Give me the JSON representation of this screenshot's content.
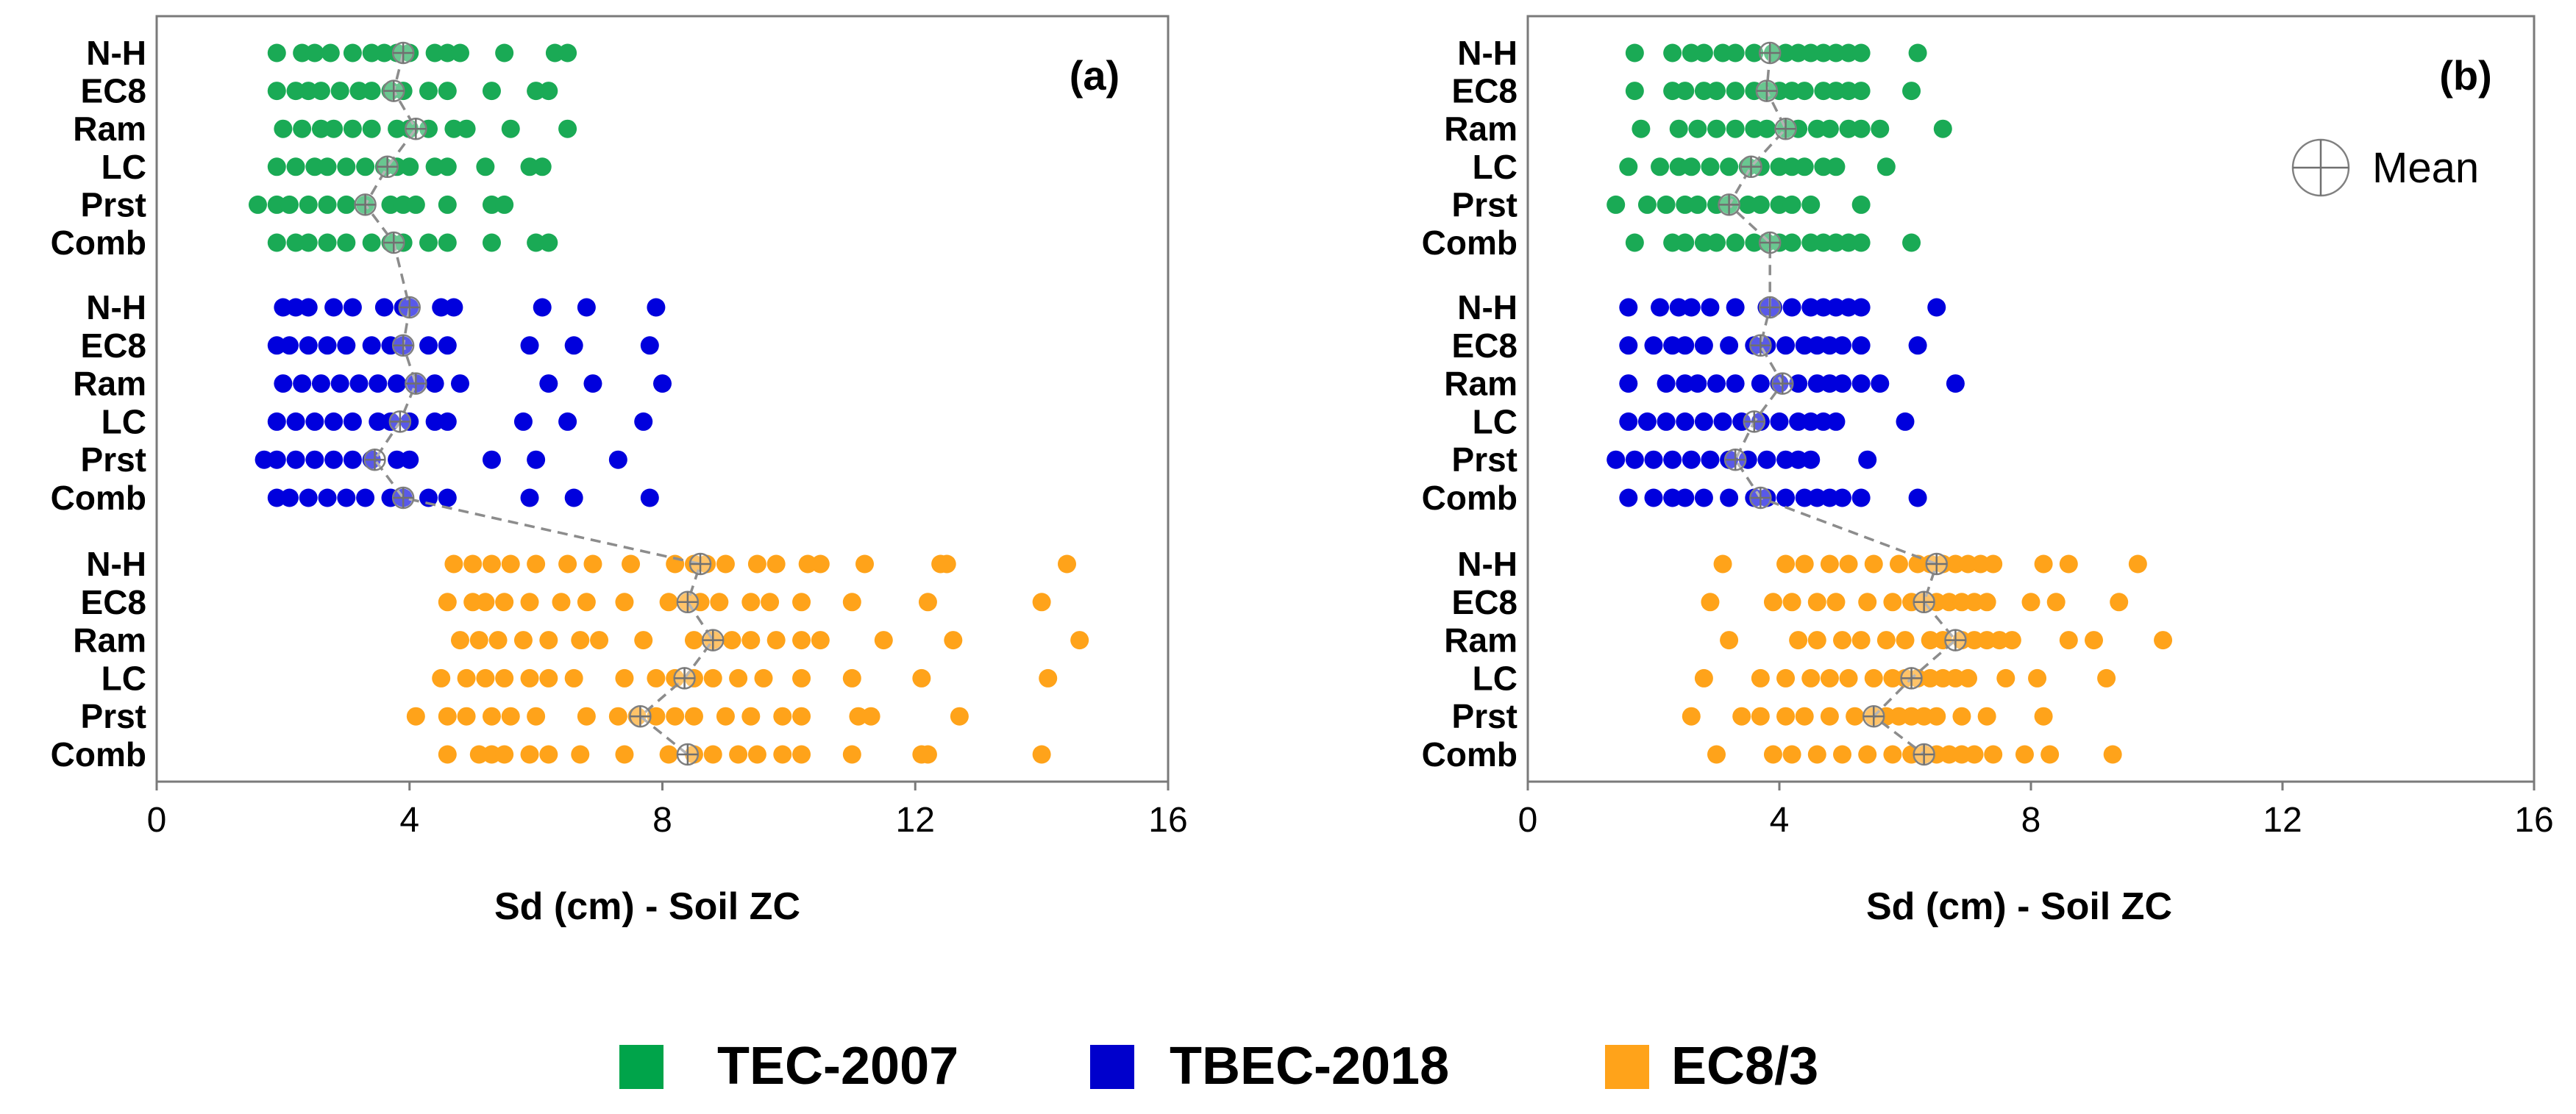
{
  "chart_data": {
    "type": "scatter",
    "categories": [
      "N-H",
      "EC8",
      "Ram",
      "LC",
      "Prst",
      "Comb"
    ],
    "xlabel": "Sd (cm) - Soil ZC",
    "xlim": [
      0,
      16
    ],
    "xticks": [
      0,
      4,
      8,
      12,
      16
    ],
    "mean_label": "Mean",
    "legend": [
      {
        "name": "TEC-2007",
        "color": "#00a44a"
      },
      {
        "name": "TBEC-2018",
        "color": "#0000cc"
      },
      {
        "name": "EC8/3",
        "color": "#ffa31a"
      }
    ],
    "panels": [
      {
        "tag": "(a)",
        "series": [
          {
            "name": "TEC-2007",
            "color": "#1aaa55",
            "rows": {
              "N-H": {
                "values": [
                  1.9,
                  2.3,
                  2.5,
                  2.75,
                  3.1,
                  3.4,
                  3.6,
                  3.8,
                  4.0,
                  4.4,
                  4.6,
                  4.8,
                  5.5,
                  6.3,
                  6.5
                ],
                "mean": 3.9
              },
              "EC8": {
                "values": [
                  1.9,
                  2.2,
                  2.4,
                  2.6,
                  2.9,
                  3.2,
                  3.4,
                  3.7,
                  3.9,
                  4.3,
                  4.6,
                  5.3,
                  6.0,
                  6.2
                ],
                "mean": 3.75
              },
              "Ram": {
                "values": [
                  2.0,
                  2.3,
                  2.6,
                  2.8,
                  3.1,
                  3.4,
                  3.8,
                  4.0,
                  4.3,
                  4.7,
                  4.9,
                  5.6,
                  6.5
                ],
                "mean": 4.1
              },
              "LC": {
                "values": [
                  1.9,
                  2.2,
                  2.5,
                  2.7,
                  3.0,
                  3.3,
                  3.6,
                  3.8,
                  4.0,
                  4.4,
                  4.6,
                  5.2,
                  5.9,
                  6.1
                ],
                "mean": 3.65
              },
              "Prst": {
                "values": [
                  1.6,
                  1.9,
                  2.1,
                  2.4,
                  2.7,
                  3.0,
                  3.3,
                  3.7,
                  3.9,
                  4.1,
                  4.6,
                  5.3,
                  5.5
                ],
                "mean": 3.3
              },
              "Comb": {
                "values": [
                  1.9,
                  2.2,
                  2.4,
                  2.7,
                  3.0,
                  3.4,
                  3.7,
                  3.9,
                  4.3,
                  4.6,
                  5.3,
                  6.0,
                  6.2
                ],
                "mean": 3.75
              }
            }
          },
          {
            "name": "TBEC-2018",
            "color": "#0000dd",
            "rows": {
              "N-H": {
                "values": [
                  2.0,
                  2.2,
                  2.4,
                  2.8,
                  3.1,
                  3.6,
                  3.9,
                  4.0,
                  4.5,
                  4.7,
                  6.1,
                  6.8,
                  7.9
                ],
                "mean": 4.0
              },
              "EC8": {
                "values": [
                  1.9,
                  2.1,
                  2.4,
                  2.7,
                  3.0,
                  3.4,
                  3.7,
                  3.9,
                  4.3,
                  4.6,
                  5.9,
                  6.6,
                  7.8
                ],
                "mean": 3.9
              },
              "Ram": {
                "values": [
                  2.0,
                  2.3,
                  2.6,
                  2.9,
                  3.2,
                  3.5,
                  3.8,
                  4.1,
                  4.4,
                  4.8,
                  6.2,
                  6.9,
                  8.0
                ],
                "mean": 4.1
              },
              "LC": {
                "values": [
                  1.9,
                  2.2,
                  2.5,
                  2.8,
                  3.1,
                  3.5,
                  3.7,
                  4.0,
                  4.4,
                  4.6,
                  5.8,
                  6.5,
                  7.7
                ],
                "mean": 3.85
              },
              "Prst": {
                "values": [
                  1.7,
                  1.9,
                  2.2,
                  2.5,
                  2.8,
                  3.1,
                  3.4,
                  3.8,
                  4.0,
                  5.3,
                  6.0,
                  7.3
                ],
                "mean": 3.45
              },
              "Comb": {
                "values": [
                  1.9,
                  2.1,
                  2.4,
                  2.7,
                  3.0,
                  3.3,
                  3.7,
                  3.9,
                  4.3,
                  4.6,
                  5.9,
                  6.6,
                  7.8
                ],
                "mean": 3.9
              }
            }
          },
          {
            "name": "EC8/3",
            "color": "#ffa31a",
            "rows": {
              "N-H": {
                "values": [
                  4.7,
                  5.0,
                  5.3,
                  5.6,
                  6.0,
                  6.5,
                  6.9,
                  7.5,
                  8.2,
                  8.5,
                  8.7,
                  9.0,
                  9.5,
                  9.8,
                  10.3,
                  10.5,
                  11.2,
                  12.4,
                  12.5,
                  14.4
                ],
                "mean": 8.6
              },
              "EC8": {
                "values": [
                  4.6,
                  5.0,
                  5.2,
                  5.5,
                  5.9,
                  6.4,
                  6.8,
                  7.4,
                  8.1,
                  8.4,
                  8.6,
                  8.9,
                  9.4,
                  9.7,
                  10.2,
                  11.0,
                  12.2,
                  14.0
                ],
                "mean": 8.4
              },
              "Ram": {
                "values": [
                  4.8,
                  5.1,
                  5.4,
                  5.8,
                  6.2,
                  6.7,
                  7.0,
                  7.7,
                  8.5,
                  8.8,
                  9.1,
                  9.4,
                  9.8,
                  10.2,
                  10.5,
                  11.5,
                  12.6,
                  14.6
                ],
                "mean": 8.8
              },
              "LC": {
                "values": [
                  4.5,
                  4.9,
                  5.2,
                  5.5,
                  5.9,
                  6.2,
                  6.6,
                  7.4,
                  7.9,
                  8.2,
                  8.5,
                  8.8,
                  9.2,
                  9.6,
                  10.2,
                  11.0,
                  12.1,
                  14.1
                ],
                "mean": 8.35
              },
              "Prst": {
                "values": [
                  4.1,
                  4.6,
                  4.9,
                  5.3,
                  5.6,
                  6.0,
                  6.8,
                  7.3,
                  7.6,
                  7.9,
                  8.2,
                  8.5,
                  9.0,
                  9.4,
                  9.9,
                  10.2,
                  11.1,
                  11.3,
                  12.7
                ],
                "mean": 7.65
              },
              "Comb": {
                "values": [
                  4.6,
                  5.1,
                  5.3,
                  5.5,
                  5.9,
                  6.2,
                  6.7,
                  7.4,
                  8.1,
                  8.5,
                  8.8,
                  9.2,
                  9.5,
                  9.9,
                  10.2,
                  11.0,
                  12.1,
                  12.2,
                  14.0
                ],
                "mean": 8.4
              }
            }
          }
        ]
      },
      {
        "tag": "(b)",
        "series": [
          {
            "name": "TEC-2007",
            "color": "#1aaa55",
            "rows": {
              "N-H": {
                "values": [
                  1.7,
                  2.3,
                  2.6,
                  2.8,
                  3.1,
                  3.3,
                  3.6,
                  3.9,
                  4.1,
                  4.3,
                  4.5,
                  4.7,
                  4.9,
                  5.1,
                  5.3,
                  6.2
                ],
                "mean": 3.85
              },
              "EC8": {
                "values": [
                  1.7,
                  2.3,
                  2.5,
                  2.8,
                  3.0,
                  3.3,
                  3.6,
                  3.8,
                  4.0,
                  4.2,
                  4.4,
                  4.7,
                  4.9,
                  5.1,
                  5.3,
                  6.1
                ],
                "mean": 3.8
              },
              "Ram": {
                "values": [
                  1.8,
                  2.4,
                  2.7,
                  3.0,
                  3.3,
                  3.6,
                  3.8,
                  4.1,
                  4.3,
                  4.6,
                  4.8,
                  5.1,
                  5.3,
                  5.6,
                  6.6
                ],
                "mean": 4.1
              },
              "LC": {
                "values": [
                  1.6,
                  2.1,
                  2.4,
                  2.6,
                  2.9,
                  3.2,
                  3.5,
                  3.7,
                  4.0,
                  4.2,
                  4.4,
                  4.7,
                  4.9,
                  5.7
                ],
                "mean": 3.55
              },
              "Prst": {
                "values": [
                  1.4,
                  1.9,
                  2.2,
                  2.5,
                  2.7,
                  3.0,
                  3.2,
                  3.5,
                  3.7,
                  4.0,
                  4.2,
                  4.5,
                  5.3
                ],
                "mean": 3.2
              },
              "Comb": {
                "values": [
                  1.7,
                  2.3,
                  2.5,
                  2.8,
                  3.0,
                  3.3,
                  3.6,
                  3.8,
                  4.0,
                  4.2,
                  4.5,
                  4.7,
                  4.9,
                  5.1,
                  5.3,
                  6.1
                ],
                "mean": 3.85
              }
            }
          },
          {
            "name": "TBEC-2018",
            "color": "#0000dd",
            "rows": {
              "N-H": {
                "values": [
                  1.6,
                  2.1,
                  2.4,
                  2.6,
                  2.9,
                  3.3,
                  3.8,
                  3.9,
                  4.2,
                  4.5,
                  4.7,
                  4.9,
                  5.1,
                  5.3,
                  6.5
                ],
                "mean": 3.85
              },
              "EC8": {
                "values": [
                  1.6,
                  2.0,
                  2.3,
                  2.5,
                  2.8,
                  3.2,
                  3.6,
                  3.8,
                  4.1,
                  4.4,
                  4.6,
                  4.8,
                  5.0,
                  5.3,
                  6.2
                ],
                "mean": 3.7
              },
              "Ram": {
                "values": [
                  1.6,
                  2.2,
                  2.5,
                  2.7,
                  3.0,
                  3.3,
                  3.7,
                  4.0,
                  4.3,
                  4.6,
                  4.8,
                  5.0,
                  5.3,
                  5.6,
                  6.8
                ],
                "mean": 4.05
              },
              "LC": {
                "values": [
                  1.6,
                  1.9,
                  2.2,
                  2.5,
                  2.8,
                  3.1,
                  3.4,
                  3.7,
                  4.0,
                  4.3,
                  4.5,
                  4.7,
                  4.9,
                  6.0
                ],
                "mean": 3.6
              },
              "Prst": {
                "values": [
                  1.4,
                  1.7,
                  2.0,
                  2.3,
                  2.6,
                  2.9,
                  3.2,
                  3.5,
                  3.8,
                  4.1,
                  4.3,
                  4.5,
                  5.4
                ],
                "mean": 3.3
              },
              "Comb": {
                "values": [
                  1.6,
                  2.0,
                  2.3,
                  2.5,
                  2.8,
                  3.2,
                  3.6,
                  3.8,
                  4.1,
                  4.4,
                  4.6,
                  4.8,
                  5.0,
                  5.3,
                  6.2
                ],
                "mean": 3.7
              }
            }
          },
          {
            "name": "EC8/3",
            "color": "#ffa31a",
            "rows": {
              "N-H": {
                "values": [
                  3.1,
                  4.1,
                  4.4,
                  4.8,
                  5.1,
                  5.5,
                  5.9,
                  6.2,
                  6.4,
                  6.6,
                  6.8,
                  7.0,
                  7.2,
                  7.4,
                  8.2,
                  8.6,
                  9.7
                ],
                "mean": 6.5
              },
              "EC8": {
                "values": [
                  2.9,
                  3.9,
                  4.2,
                  4.6,
                  4.9,
                  5.4,
                  5.8,
                  6.1,
                  6.3,
                  6.5,
                  6.7,
                  6.9,
                  7.1,
                  7.3,
                  8.0,
                  8.4,
                  9.4
                ],
                "mean": 6.3
              },
              "Ram": {
                "values": [
                  3.2,
                  4.3,
                  4.6,
                  5.0,
                  5.3,
                  5.7,
                  6.0,
                  6.4,
                  6.6,
                  6.9,
                  7.1,
                  7.3,
                  7.5,
                  7.7,
                  8.6,
                  9.0,
                  10.1
                ],
                "mean": 6.8
              },
              "LC": {
                "values": [
                  2.8,
                  3.7,
                  4.1,
                  4.5,
                  4.8,
                  5.1,
                  5.5,
                  5.8,
                  6.0,
                  6.2,
                  6.4,
                  6.6,
                  6.8,
                  7.0,
                  7.6,
                  8.1,
                  9.2
                ],
                "mean": 6.1
              },
              "Prst": {
                "values": [
                  2.6,
                  3.4,
                  3.7,
                  4.1,
                  4.4,
                  4.8,
                  5.2,
                  5.5,
                  5.7,
                  5.9,
                  6.1,
                  6.3,
                  6.5,
                  6.9,
                  7.3,
                  8.2
                ],
                "mean": 5.5
              },
              "Comb": {
                "values": [
                  3.0,
                  3.9,
                  4.2,
                  4.6,
                  5.0,
                  5.4,
                  5.8,
                  6.1,
                  6.3,
                  6.5,
                  6.7,
                  6.9,
                  7.1,
                  7.4,
                  7.9,
                  8.3,
                  9.3
                ],
                "mean": 6.3
              }
            }
          }
        ]
      }
    ]
  }
}
